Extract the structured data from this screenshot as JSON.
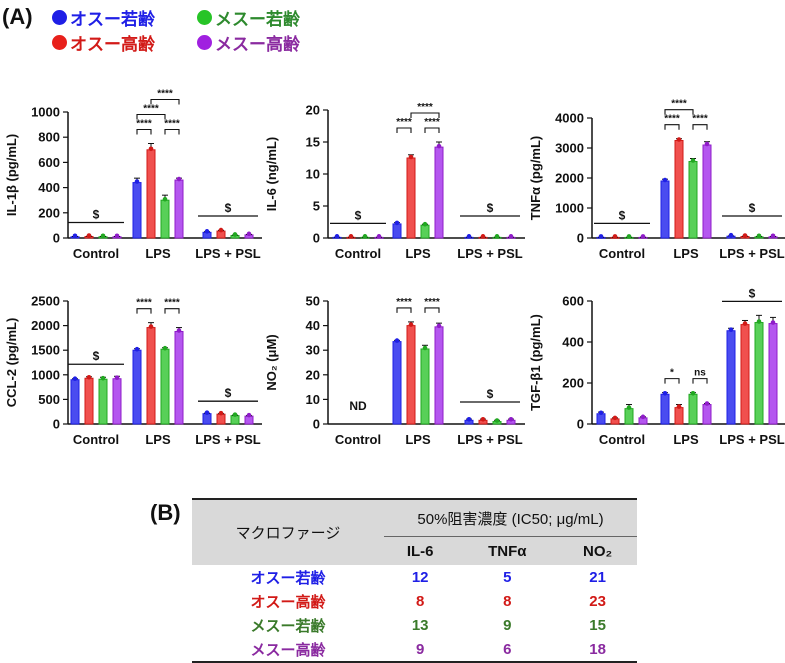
{
  "labels": {
    "panel_a": "(A)",
    "panel_b": "(B)"
  },
  "legend": [
    {
      "label": "オスー若齢",
      "color": "#1f1fe6"
    },
    {
      "label": "メスー若齢",
      "color": "#27c427"
    },
    {
      "label": "オスー高齢",
      "color": "#e8201b"
    },
    {
      "label": "メスー高齢",
      "color": "#a020e0"
    }
  ],
  "colors": {
    "series": [
      "#4a4cf0",
      "#f0504e",
      "#58d058",
      "#b457ef"
    ],
    "edges": [
      "#1f1fe6",
      "#d21a17",
      "#21a821",
      "#8f1cc9"
    ]
  },
  "chart_data": [
    {
      "type": "bar",
      "ylabel": "IL-1β (pg/mL)",
      "ylim": [
        0,
        1000
      ],
      "yticks": [
        0,
        200,
        400,
        600,
        800,
        1000
      ],
      "categories": [
        "Control",
        "LPS",
        "LPS + PSL"
      ],
      "series": [
        {
          "name": "オスー若齢",
          "values": [
            10,
            440,
            45
          ],
          "errors": [
            2,
            35,
            5
          ]
        },
        {
          "name": "オスー高齢",
          "values": [
            12,
            700,
            55
          ],
          "errors": [
            2,
            50,
            6
          ]
        },
        {
          "name": "メスー若齢",
          "values": [
            10,
            300,
            20
          ],
          "errors": [
            2,
            40,
            3
          ]
        },
        {
          "name": "メスー高齢",
          "values": [
            10,
            460,
            25
          ],
          "errors": [
            2,
            15,
            3
          ]
        }
      ],
      "control_sig": "$",
      "psl_sig": "$",
      "brackets": [
        {
          "a": 0,
          "b": 1,
          "label": "****",
          "level": 0
        },
        {
          "a": 2,
          "b": 3,
          "label": "****",
          "level": 0
        },
        {
          "a": 0,
          "b": 2,
          "label": "****",
          "level": 1
        },
        {
          "a": 1,
          "b": 3,
          "label": "****",
          "level": 2
        }
      ]
    },
    {
      "type": "bar",
      "ylabel": "IL-6 (ng/mL)",
      "ylim": [
        0,
        20
      ],
      "yticks": [
        0,
        5,
        10,
        15,
        20
      ],
      "categories": [
        "Control",
        "LPS",
        "LPS + PSL"
      ],
      "series": [
        {
          "name": "オスー若齢",
          "values": [
            0.1,
            2.2,
            0.1
          ],
          "errors": [
            0.02,
            0.2,
            0.02
          ]
        },
        {
          "name": "オスー高齢",
          "values": [
            0.1,
            12.5,
            0.1
          ],
          "errors": [
            0.02,
            0.5,
            0.02
          ]
        },
        {
          "name": "メスー若齢",
          "values": [
            0.1,
            2.0,
            0.1
          ],
          "errors": [
            0.02,
            0.15,
            0.02
          ]
        },
        {
          "name": "メスー高齢",
          "values": [
            0.1,
            14.2,
            0.1
          ],
          "errors": [
            0.02,
            0.8,
            0.02
          ]
        }
      ],
      "control_sig": "$",
      "psl_sig": "$",
      "brackets": [
        {
          "a": 0,
          "b": 1,
          "label": "****",
          "level": 0
        },
        {
          "a": 2,
          "b": 3,
          "label": "****",
          "level": 0
        },
        {
          "a": 1,
          "b": 3,
          "label": "****",
          "level": 1
        }
      ]
    },
    {
      "type": "bar",
      "ylabel": "TNFα (pg/mL)",
      "ylim": [
        0,
        4000
      ],
      "yticks": [
        0,
        1000,
        2000,
        3000,
        4000
      ],
      "categories": [
        "Control",
        "LPS",
        "LPS + PSL"
      ],
      "series": [
        {
          "name": "オスー若齢",
          "values": [
            20,
            1900,
            60
          ],
          "errors": [
            5,
            60,
            10
          ]
        },
        {
          "name": "オスー高齢",
          "values": [
            20,
            3250,
            50
          ],
          "errors": [
            5,
            60,
            10
          ]
        },
        {
          "name": "メスー若齢",
          "values": [
            20,
            2550,
            40
          ],
          "errors": [
            5,
            100,
            8
          ]
        },
        {
          "name": "メスー高齢",
          "values": [
            20,
            3100,
            40
          ],
          "errors": [
            5,
            110,
            8
          ]
        }
      ],
      "control_sig": "$",
      "psl_sig": "$",
      "brackets": [
        {
          "a": 0,
          "b": 1,
          "label": "****",
          "level": 0
        },
        {
          "a": 2,
          "b": 3,
          "label": "****",
          "level": 0
        },
        {
          "a": 0,
          "b": 2,
          "label": "****",
          "level": 1
        }
      ]
    },
    {
      "type": "bar",
      "ylabel": "CCL-2 (pg/mL)",
      "ylim": [
        0,
        2500
      ],
      "yticks": [
        0,
        500,
        1000,
        1500,
        2000,
        2500
      ],
      "categories": [
        "Control",
        "LPS",
        "LPS + PSL"
      ],
      "series": [
        {
          "name": "オスー若齢",
          "values": [
            900,
            1500,
            210
          ],
          "errors": [
            20,
            30,
            10
          ]
        },
        {
          "name": "オスー高齢",
          "values": [
            930,
            1960,
            200
          ],
          "errors": [
            30,
            100,
            10
          ]
        },
        {
          "name": "メスー若齢",
          "values": [
            910,
            1520,
            170
          ],
          "errors": [
            40,
            30,
            10
          ]
        },
        {
          "name": "メスー高齢",
          "values": [
            920,
            1880,
            160
          ],
          "errors": [
            50,
            80,
            10
          ]
        }
      ],
      "control_sig": "$",
      "psl_sig": "$",
      "brackets": [
        {
          "a": 0,
          "b": 1,
          "label": "****",
          "level": 0
        },
        {
          "a": 2,
          "b": 3,
          "label": "****",
          "level": 0
        }
      ]
    },
    {
      "type": "bar",
      "ylabel": "NO₂ (μM)",
      "ylim": [
        0,
        50
      ],
      "yticks": [
        0,
        10,
        20,
        30,
        40,
        50
      ],
      "categories": [
        "Control",
        "LPS",
        "LPS + PSL"
      ],
      "series": [
        {
          "name": "オスー若齢",
          "values": [
            0,
            33.5,
            1.5
          ],
          "errors": [
            0,
            0.5,
            0.5
          ]
        },
        {
          "name": "オスー高齢",
          "values": [
            0,
            40,
            1.5
          ],
          "errors": [
            0,
            1.5,
            0.5
          ]
        },
        {
          "name": "メスー若齢",
          "values": [
            0,
            30.5,
            1.0
          ],
          "errors": [
            0,
            1.5,
            0.5
          ]
        },
        {
          "name": "メスー高齢",
          "values": [
            0,
            39.5,
            1.5
          ],
          "errors": [
            0,
            1.5,
            0.5
          ]
        }
      ],
      "control_note": "ND",
      "psl_sig": "$",
      "brackets": [
        {
          "a": 0,
          "b": 1,
          "label": "****",
          "level": 0
        },
        {
          "a": 2,
          "b": 3,
          "label": "****",
          "level": 0
        }
      ]
    },
    {
      "type": "bar",
      "ylabel": "TGF-β1 (pg/mL)",
      "ylim": [
        0,
        600
      ],
      "yticks": [
        0,
        200,
        400,
        600
      ],
      "categories": [
        "Control",
        "LPS",
        "LPS + PSL"
      ],
      "series": [
        {
          "name": "オスー若齢",
          "values": [
            50,
            145,
            455
          ],
          "errors": [
            8,
            8,
            12
          ]
        },
        {
          "name": "オスー高齢",
          "values": [
            25,
            80,
            485
          ],
          "errors": [
            5,
            15,
            20
          ]
        },
        {
          "name": "メスー若齢",
          "values": [
            75,
            145,
            495
          ],
          "errors": [
            20,
            8,
            35
          ]
        },
        {
          "name": "メスー高齢",
          "values": [
            30,
            95,
            490
          ],
          "errors": [
            5,
            5,
            30
          ]
        }
      ],
      "psl_sig_top": "$",
      "brackets": [
        {
          "a": 0,
          "b": 1,
          "label": "*",
          "level": 0
        },
        {
          "a": 2,
          "b": 3,
          "label": "ns",
          "level": 0
        }
      ]
    }
  ],
  "table": {
    "corner_header": "マクロファージ",
    "group_header": "50%阻害濃度 (IC50; μg/mL)",
    "col_headers": [
      "IL-6",
      "TNFα",
      "NO₂"
    ],
    "rows": [
      {
        "name": "オスー若齢",
        "values": [
          "12",
          "5",
          "21"
        ],
        "color": "#1f1fe6"
      },
      {
        "name": "オスー高齢",
        "values": [
          "8",
          "8",
          "23"
        ],
        "color": "#d21a17"
      },
      {
        "name": "メスー若齢",
        "values": [
          "13",
          "9",
          "15"
        ],
        "color": "#3a7a2a"
      },
      {
        "name": "メスー高齢",
        "values": [
          "9",
          "6",
          "18"
        ],
        "color": "#8a2aa0"
      }
    ]
  }
}
